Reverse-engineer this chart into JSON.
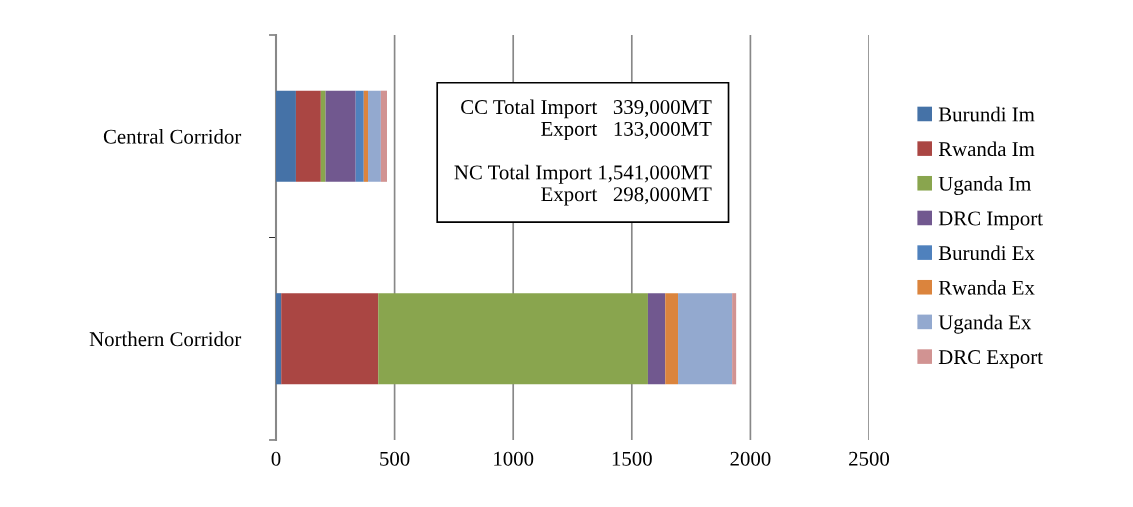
{
  "chart_data": {
    "type": "bar",
    "orientation": "horizontal",
    "stacked": true,
    "categories": [
      "Central Corridor",
      "Northern Corridor"
    ],
    "series": [
      {
        "name": "Burundi Im",
        "color": "#4572a7",
        "values": [
          84,
          22
        ]
      },
      {
        "name": "Rwanda Im",
        "color": "#aa4643",
        "values": [
          105,
          409
        ]
      },
      {
        "name": "Uganda Im",
        "color": "#89a54e",
        "values": [
          20,
          1137
        ]
      },
      {
        "name": "DRC Import",
        "color": "#71588f",
        "values": [
          127,
          73
        ]
      },
      {
        "name": "Burundi Ex",
        "color": "#4f81bd",
        "values": [
          34,
          0
        ]
      },
      {
        "name": "Rwanda Ex",
        "color": "#db843d",
        "values": [
          18,
          54
        ]
      },
      {
        "name": "Uganda Ex",
        "color": "#93a9cf",
        "values": [
          54,
          228
        ]
      },
      {
        "name": "DRC Export",
        "color": "#d19392",
        "values": [
          26,
          17
        ]
      }
    ],
    "xlim": [
      0,
      2500
    ],
    "xticks": [
      0,
      500,
      1000,
      1500,
      2000,
      2500
    ],
    "grid": "x",
    "legend": "right",
    "annotations": [
      "CC Total Import   339,000MT\nExport   133,000MT\n\nNC Total Import 1,541,000MT\nExport   298,000MT"
    ]
  }
}
